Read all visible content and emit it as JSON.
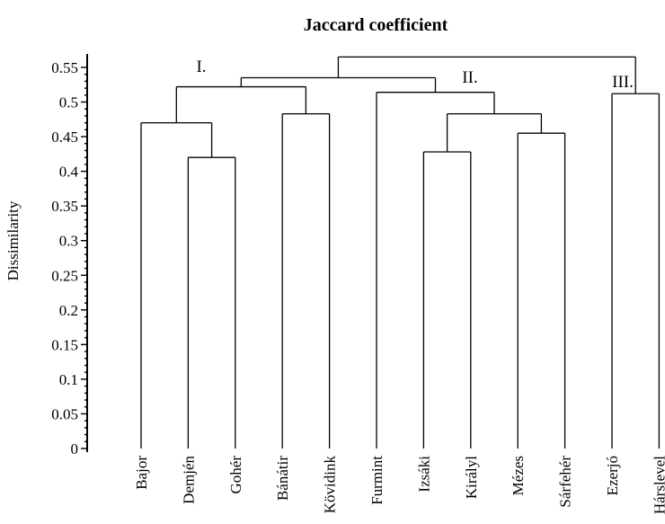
{
  "chart_data": {
    "type": "dendrogram",
    "title": "Jaccard coefficient",
    "ylabel": "Dissimilarity",
    "ylim": [
      0,
      0.55
    ],
    "yticks": [
      0,
      0.05,
      0.1,
      0.15,
      0.2,
      0.25,
      0.3,
      0.35,
      0.4,
      0.45,
      0.5,
      0.55
    ],
    "ytick_labels": [
      "0",
      "0.05",
      "0.1",
      "0.15",
      "0.2",
      "0.25",
      "0.3",
      "0.35",
      "0.4",
      "0.45",
      "0.5",
      "0.55"
    ],
    "leaves": [
      "Bajor",
      "Demjén",
      "Gohér",
      "Bánátir",
      "Kövidink",
      "Furmint",
      "Izsáki",
      "Királyl",
      "Mézes",
      "Sárfehér",
      "Ezerjó",
      "Hárslevel"
    ],
    "merges": [
      {
        "left": "L1",
        "right": "L2",
        "height": 0.42
      },
      {
        "left": "L0",
        "right": "M0",
        "height": 0.47
      },
      {
        "left": "L3",
        "right": "L4",
        "height": 0.483
      },
      {
        "left": "M1",
        "right": "M2",
        "height": 0.522
      },
      {
        "left": "L6",
        "right": "L7",
        "height": 0.428
      },
      {
        "left": "L8",
        "right": "L9",
        "height": 0.455
      },
      {
        "left": "M4",
        "right": "M5",
        "height": 0.483
      },
      {
        "left": "L5",
        "right": "M6",
        "height": 0.514
      },
      {
        "left": "M3",
        "right": "M7",
        "height": 0.535
      },
      {
        "left": "L10",
        "right": "L11",
        "height": 0.512
      },
      {
        "left": "M8",
        "right": "M9",
        "height": 0.565
      }
    ],
    "cluster_labels": [
      {
        "text": "I.",
        "group": [
          "Bajor",
          "Demjén",
          "Gohér",
          "Bánátir",
          "Kövidink"
        ]
      },
      {
        "text": "II.",
        "group": [
          "Furmint",
          "Izsáki",
          "Királyl",
          "Mézes",
          "Sárfehér"
        ]
      },
      {
        "text": "III.",
        "group": [
          "Ezerjó",
          "Hárslevel"
        ]
      }
    ]
  }
}
